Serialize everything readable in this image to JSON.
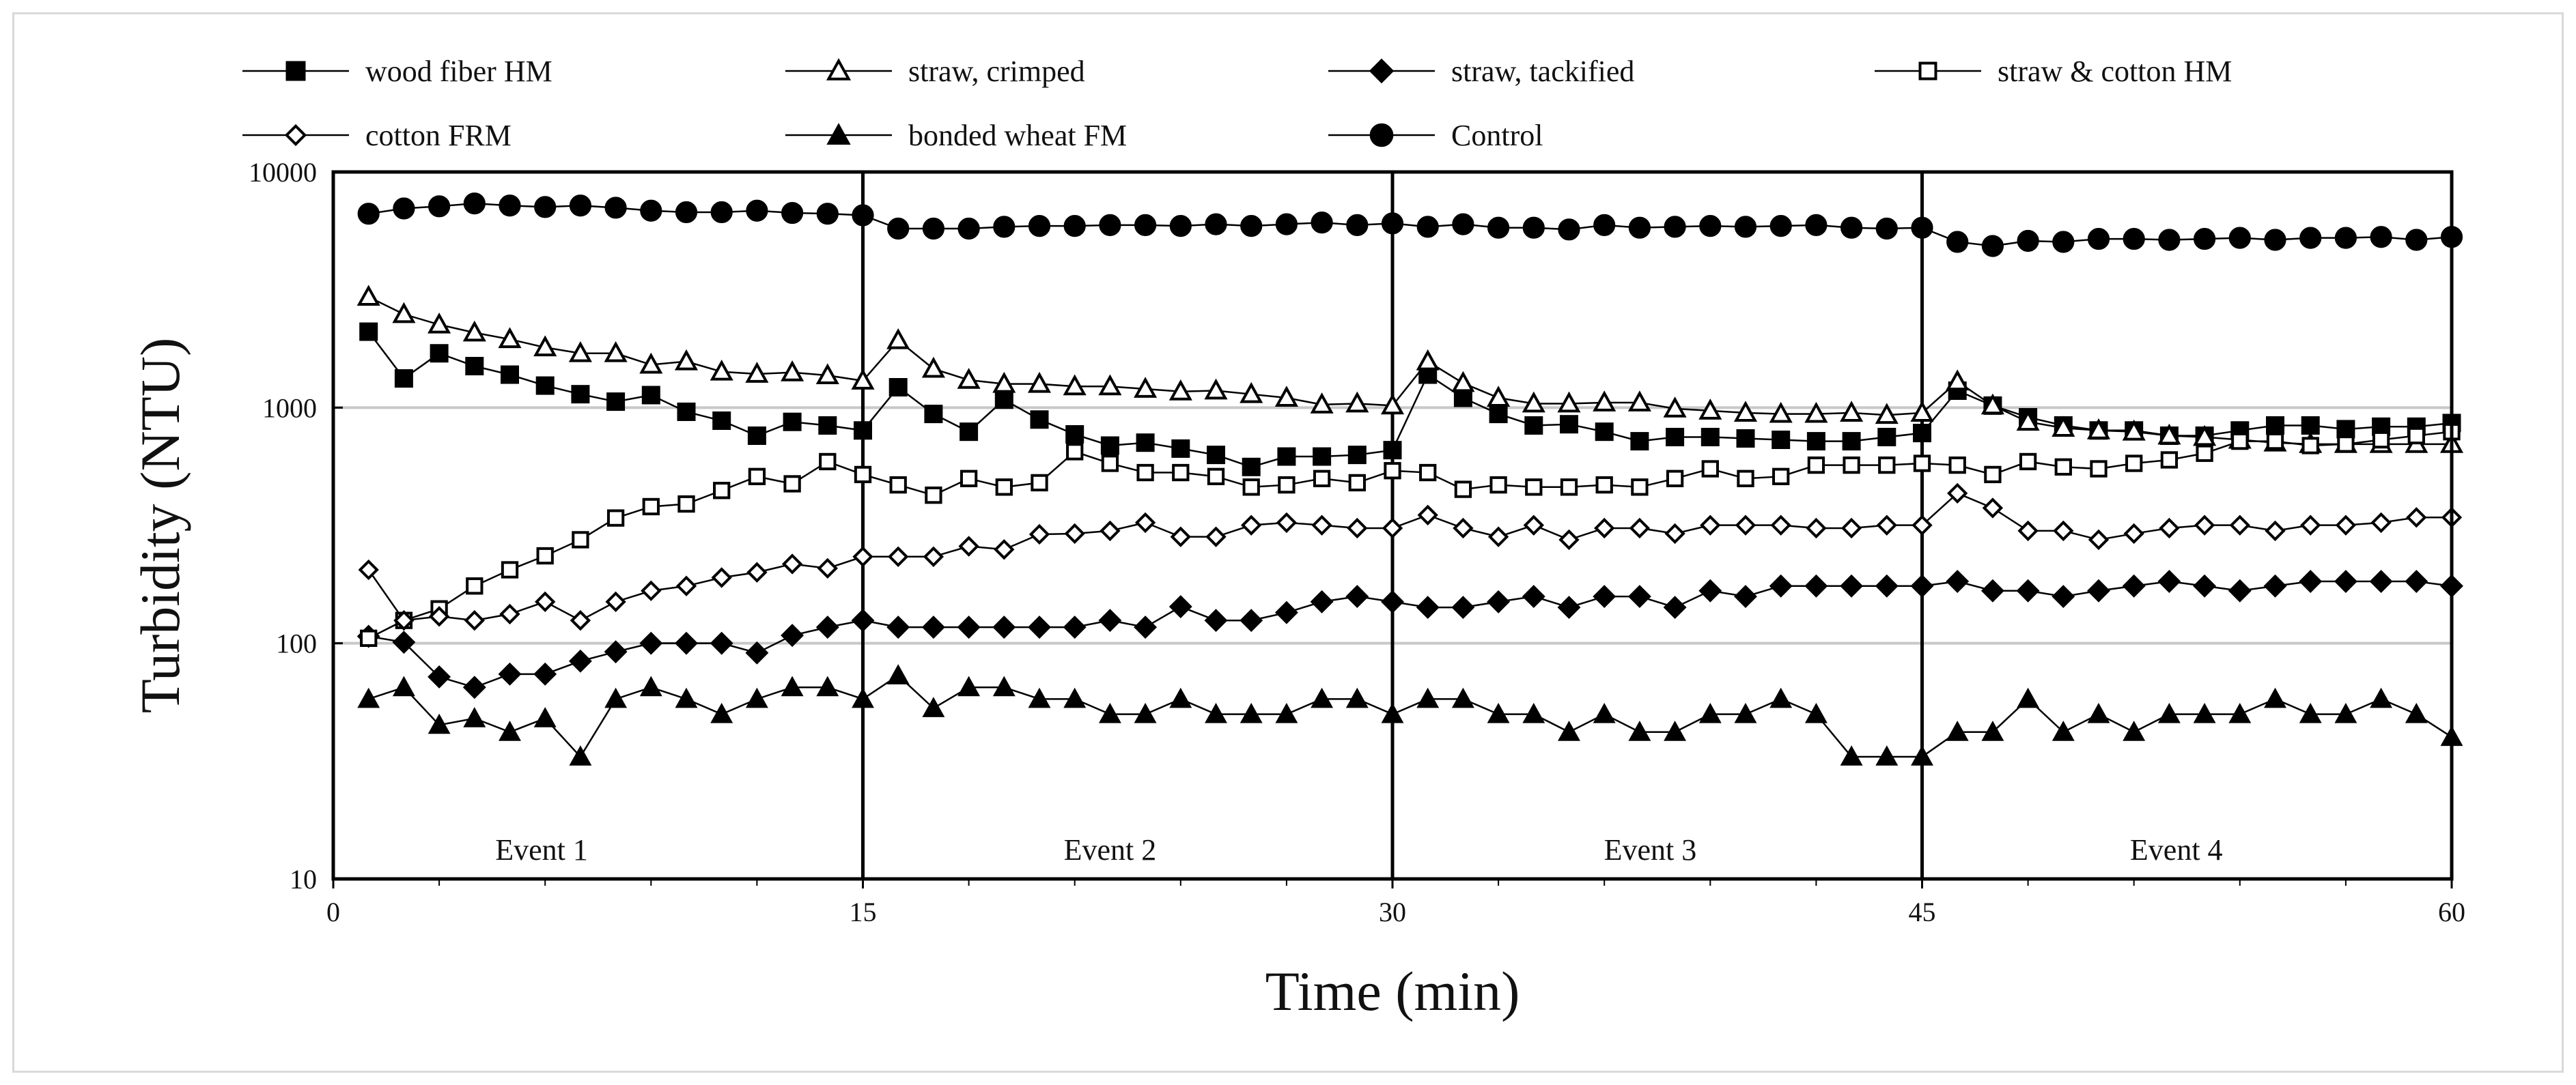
{
  "chart_data": {
    "type": "line",
    "title": "",
    "xlabel": "Time (min)",
    "ylabel": "Turbidity (NTU)",
    "yscale": "log",
    "xlim": [
      0,
      60
    ],
    "ylim": [
      10,
      10000
    ],
    "xticks": [
      "0",
      "15",
      "30",
      "45",
      "60"
    ],
    "yticks": [
      "10",
      "100",
      "1000",
      "10000"
    ],
    "grid": "horizontal",
    "legend_position": "top",
    "event_lines_x": [
      15,
      30,
      45
    ],
    "events": [
      {
        "label": "Event 1",
        "x": 5.9
      },
      {
        "label": "Event 2",
        "x": 22.0
      },
      {
        "label": "Event 3",
        "x": 37.3
      },
      {
        "label": "Event 4",
        "x": 52.2
      }
    ],
    "x": [
      1,
      2,
      3,
      4,
      5,
      6,
      7,
      8,
      9,
      10,
      11,
      12,
      13,
      14,
      15,
      16,
      17,
      18,
      19,
      20,
      21,
      22,
      23,
      24,
      25,
      26,
      27,
      28,
      29,
      30,
      31,
      32,
      33,
      34,
      35,
      36,
      37,
      38,
      39,
      40,
      41,
      42,
      43,
      44,
      45,
      46,
      47,
      48,
      49,
      50,
      51,
      52,
      53,
      54,
      55,
      56,
      57,
      58,
      59,
      60
    ],
    "series": [
      {
        "name": "wood fiber HM",
        "marker": "square-filled",
        "values": [
          2100,
          1330,
          1700,
          1500,
          1380,
          1240,
          1140,
          1060,
          1130,
          960,
          880,
          760,
          870,
          840,
          800,
          1220,
          940,
          790,
          1080,
          890,
          770,
          690,
          710,
          670,
          630,
          560,
          620,
          620,
          630,
          660,
          1380,
          1100,
          940,
          840,
          850,
          790,
          720,
          750,
          750,
          740,
          730,
          720,
          720,
          750,
          780,
          1180,
          1020,
          910,
          840,
          800,
          800,
          760,
          760,
          800,
          840,
          840,
          810,
          830,
          830,
          860
        ]
      },
      {
        "name": "straw, crimped",
        "marker": "triangle-open",
        "values": [
          2950,
          2490,
          2250,
          2080,
          1950,
          1800,
          1700,
          1700,
          1520,
          1570,
          1420,
          1390,
          1410,
          1370,
          1300,
          1930,
          1460,
          1310,
          1260,
          1260,
          1230,
          1230,
          1200,
          1170,
          1180,
          1140,
          1100,
          1030,
          1040,
          1020,
          1570,
          1270,
          1100,
          1040,
          1040,
          1050,
          1050,
          990,
          970,
          950,
          940,
          940,
          950,
          930,
          950,
          1290,
          1020,
          870,
          820,
          800,
          790,
          760,
          750,
          730,
          710,
          700,
          700,
          700,
          700,
          700
        ]
      },
      {
        "name": "straw, tackified",
        "marker": "diamond-filled",
        "values": [
          107,
          101,
          72,
          65,
          74,
          74,
          84,
          92,
          100,
          100,
          100,
          91,
          108,
          117,
          125,
          117,
          117,
          117,
          117,
          117,
          117,
          125,
          117,
          143,
          125,
          125,
          135,
          150,
          158,
          150,
          142,
          142,
          150,
          158,
          142,
          158,
          158,
          142,
          167,
          158,
          175,
          175,
          175,
          175,
          175,
          183,
          167,
          167,
          158,
          167,
          175,
          183,
          175,
          167,
          175,
          183,
          183,
          183,
          183,
          175
        ]
      },
      {
        "name": "straw & cotton HM",
        "marker": "square-open",
        "values": [
          105,
          125,
          140,
          175,
          205,
          235,
          275,
          340,
          380,
          390,
          445,
          510,
          475,
          590,
          520,
          470,
          425,
          500,
          460,
          480,
          650,
          580,
          530,
          530,
          510,
          460,
          470,
          500,
          480,
          540,
          530,
          450,
          470,
          460,
          460,
          470,
          460,
          500,
          550,
          500,
          510,
          570,
          570,
          570,
          580,
          570,
          520,
          590,
          560,
          550,
          580,
          600,
          640,
          720,
          720,
          690,
          700,
          730,
          760,
          790
        ]
      },
      {
        "name": "cotton FRM",
        "marker": "diamond-open",
        "values": [
          205,
          125,
          130,
          125,
          133,
          150,
          125,
          150,
          167,
          175,
          190,
          200,
          217,
          208,
          233,
          233,
          233,
          258,
          250,
          290,
          292,
          300,
          325,
          283,
          283,
          317,
          325,
          317,
          308,
          308,
          350,
          308,
          283,
          317,
          275,
          308,
          308,
          292,
          317,
          317,
          317,
          308,
          308,
          317,
          317,
          433,
          375,
          300,
          300,
          275,
          292,
          308,
          317,
          317,
          300,
          317,
          317,
          325,
          342,
          342
        ]
      },
      {
        "name": "bonded wheat FM",
        "marker": "triangle-filled",
        "values": [
          58,
          65,
          45,
          48,
          42,
          48,
          33,
          58,
          65,
          58,
          50,
          58,
          65,
          65,
          58,
          73,
          53,
          65,
          65,
          58,
          58,
          50,
          50,
          58,
          50,
          50,
          50,
          58,
          58,
          50,
          58,
          58,
          50,
          50,
          42,
          50,
          42,
          42,
          50,
          50,
          58,
          50,
          33,
          33,
          33,
          42,
          42,
          58,
          42,
          50,
          42,
          50,
          50,
          50,
          58,
          50,
          50,
          58,
          50,
          40
        ]
      },
      {
        "name": "Control",
        "marker": "circle-filled",
        "values": [
          6650,
          7000,
          7150,
          7350,
          7200,
          7100,
          7200,
          7050,
          6850,
          6750,
          6750,
          6850,
          6700,
          6650,
          6550,
          5750,
          5750,
          5750,
          5850,
          5900,
          5900,
          5950,
          5950,
          5900,
          6000,
          5900,
          6000,
          6100,
          5950,
          6050,
          5850,
          6000,
          5800,
          5800,
          5700,
          5950,
          5800,
          5850,
          5900,
          5850,
          5900,
          5950,
          5800,
          5750,
          5800,
          5050,
          4850,
          5100,
          5050,
          5200,
          5200,
          5150,
          5200,
          5250,
          5150,
          5250,
          5250,
          5300,
          5150,
          5300
        ]
      }
    ]
  }
}
